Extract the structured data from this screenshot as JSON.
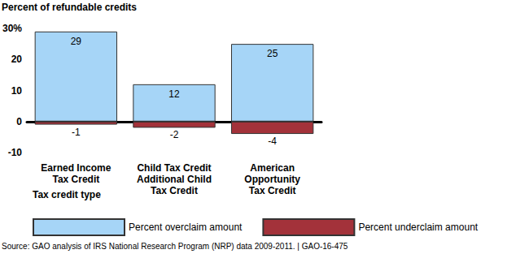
{
  "chart_data": {
    "type": "bar",
    "y_label": "Percent of refundable credits",
    "x_label": "Tax credit type",
    "source": "Source: GAO analysis of IRS National Research Program (NRP) data 2009-2011. | GAO-16-475",
    "categories": [
      "Earned Income\nTax Credit",
      "Child Tax Credit\nAdditional Child\nTax Credit",
      "American\nOpportunity\nTax Credit"
    ],
    "series": [
      {
        "name": "Percent overclaim amount",
        "color": "#a6d5f7",
        "values": [
          29,
          12,
          25
        ]
      },
      {
        "name": "Percent underclaim amount",
        "color": "#a3323a",
        "values": [
          -1,
          -2,
          -4
        ]
      }
    ],
    "ylim": [
      -10,
      30
    ],
    "yticks": [
      -10,
      0,
      10,
      20,
      {
        "value": 30,
        "label": "30%"
      }
    ],
    "stacked": true,
    "data_labels": true,
    "grid": false,
    "legend": "bottom"
  }
}
